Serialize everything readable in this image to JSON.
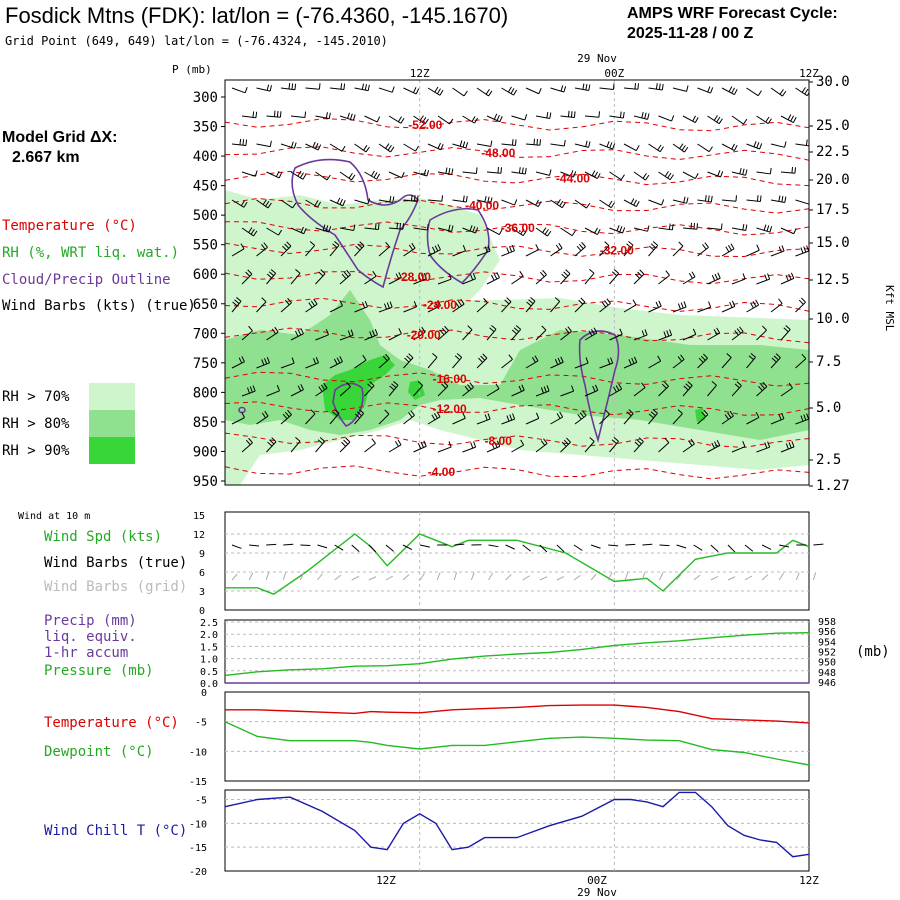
{
  "header": {
    "title": "Fosdick Mtns (FDK):  lat/lon = (-76.4360, -145.1670)",
    "subtitle": "Grid Point (649, 649) lat/lon = (-76.4324, -145.2010)",
    "cycle_line1": "AMPS WRF Forecast Cycle:",
    "cycle_line2": "2025-11-28 / 00  Z",
    "date_label": "29 Nov"
  },
  "legend": {
    "grid_title": "Model Grid ΔX:",
    "grid_value": "2.667 km",
    "temperature": "Temperature (°C)",
    "rh": "RH (%, WRT liq. wat.)",
    "cloud": "Cloud/Precip Outline",
    "wind": "Wind Barbs (kts) (true)",
    "rh70": "RH > 70%",
    "rh80": "RH > 80%",
    "rh90": "RH > 90%"
  },
  "colors": {
    "rh70": "#cef5cc",
    "rh80": "#8fe08f",
    "rh90": "#38d638",
    "temp": "#dd0000",
    "cloud": "#6a3a9a",
    "wind_green": "#22bb22",
    "chill_blue": "#1a1aaa",
    "grid_gray": "#aaaaaa"
  },
  "chart_data": [
    {
      "type": "contour",
      "name": "time-height cross section",
      "y_axis_title": "P (mb)",
      "pressure_levels": [
        300,
        350,
        400,
        450,
        500,
        550,
        600,
        650,
        700,
        750,
        800,
        850,
        900,
        950
      ],
      "height_labels": [
        "30.0",
        "25.0",
        "22.5",
        "20.0",
        "17.5",
        "15.0",
        "12.5",
        "10.0",
        "7.5",
        "5.0",
        "2.5",
        "1.27"
      ],
      "height_axis_title": "Kft MSL",
      "time_ticks": [
        "12Z",
        "00Z",
        "12Z"
      ],
      "forecast_hours": [
        0,
        36
      ],
      "isotherm_labels": [
        {
          "label": "-52.00",
          "hour": 11.3,
          "p": 347
        },
        {
          "label": "-48.00",
          "hour": 15.8,
          "p": 395
        },
        {
          "label": "-44.00",
          "hour": 20.4,
          "p": 438
        },
        {
          "label": "-40.00",
          "hour": 14.8,
          "p": 484
        },
        {
          "label": "-36.00",
          "hour": 17.0,
          "p": 522
        },
        {
          "label": "-32.00",
          "hour": 23.1,
          "p": 560
        },
        {
          "label": "-28.00",
          "hour": 10.6,
          "p": 605
        },
        {
          "label": "-24.00",
          "hour": 12.2,
          "p": 652
        },
        {
          "label": "-20.00",
          "hour": 11.2,
          "p": 703
        },
        {
          "label": "-16.00",
          "hour": 12.8,
          "p": 777
        },
        {
          "label": "-12.00",
          "hour": 12.8,
          "p": 828
        },
        {
          "label": "-8.00",
          "hour": 16.0,
          "p": 882
        },
        {
          "label": "-4.00",
          "hour": 12.5,
          "p": 935
        }
      ]
    },
    {
      "type": "line",
      "name": "wind at 10 m",
      "panel_title": "Wind at 10 m",
      "series_labels": [
        "Wind Spd (kts)",
        "Wind Barbs (true)",
        "Wind Barbs (grid)"
      ],
      "y_ticks": [
        15,
        12,
        9,
        6,
        3,
        0
      ],
      "ylim": [
        0,
        15
      ],
      "x": [
        0,
        2,
        3,
        5,
        8,
        9,
        10,
        12,
        14,
        15,
        18,
        21,
        24,
        26,
        27,
        29,
        31,
        33,
        34,
        35,
        36
      ],
      "wind_speed": [
        3.5,
        3.5,
        2.5,
        6,
        12,
        10,
        7,
        12,
        10,
        11,
        11,
        9,
        4.5,
        5,
        3,
        8,
        9,
        9,
        9,
        11,
        10
      ]
    },
    {
      "type": "line",
      "name": "precip and pressure",
      "series_labels": [
        "Precip (mm)",
        "liq. equiv.",
        "1-hr accum",
        "Pressure (mb)"
      ],
      "left_ticks": [
        "2.5",
        "2.0",
        "1.5",
        "1.0",
        "0.5",
        "0.0"
      ],
      "right_ticks": [
        "958",
        "956",
        "954",
        "952",
        "950",
        "948",
        "946"
      ],
      "right_axis_unit": "(mb)",
      "ylim_precip": [
        0,
        2.5
      ],
      "ylim_pressure": [
        946,
        958
      ],
      "x": [
        0,
        2,
        4,
        6,
        8,
        10,
        12,
        14,
        16,
        18,
        20,
        22,
        24,
        26,
        28,
        30,
        32,
        34,
        36
      ],
      "precip": [
        0,
        0,
        0,
        0,
        0,
        0,
        0,
        0,
        0,
        0,
        0,
        0,
        0,
        0,
        0,
        0,
        0,
        0,
        0
      ],
      "pressure": [
        947.5,
        948.2,
        948.6,
        948.8,
        949.3,
        949.4,
        949.8,
        950.7,
        951.3,
        951.7,
        952.0,
        952.6,
        953.4,
        953.9,
        954.3,
        954.9,
        955.4,
        955.8,
        955.9
      ]
    },
    {
      "type": "line",
      "name": "temperature and dewpoint",
      "series_labels": [
        "Temperature (°C)",
        "Dewpoint (°C)"
      ],
      "y_ticks": [
        0,
        -5,
        -10,
        -15
      ],
      "ylim": [
        -15,
        0
      ],
      "x": [
        0,
        2,
        4,
        6,
        8,
        9,
        10,
        12,
        14,
        16,
        18,
        20,
        22,
        24,
        26,
        28,
        30,
        32,
        34,
        36
      ],
      "temperature": [
        -3.0,
        -3.0,
        -3.2,
        -3.4,
        -3.6,
        -3.3,
        -3.4,
        -3.5,
        -3.0,
        -2.8,
        -2.6,
        -2.3,
        -2.2,
        -2.2,
        -2.6,
        -3.3,
        -4.5,
        -4.7,
        -4.9,
        -5.2
      ],
      "dewpoint": [
        -5.0,
        -7.5,
        -8.2,
        -8.2,
        -8.2,
        -8.5,
        -9.0,
        -9.6,
        -9.0,
        -9.0,
        -8.4,
        -7.8,
        -7.6,
        -7.8,
        -8.1,
        -8.2,
        -9.7,
        -10.2,
        -11.3,
        -12.3
      ]
    },
    {
      "type": "line",
      "name": "wind chill",
      "series_labels": [
        "Wind Chill T (°C)"
      ],
      "y_ticks": [
        -5,
        -10,
        -15,
        -20
      ],
      "ylim": [
        -20,
        -3
      ],
      "x": [
        0,
        2,
        4,
        6,
        8,
        9,
        10,
        11,
        12,
        13,
        14,
        15,
        16,
        18,
        20,
        22,
        24,
        25,
        26,
        27,
        28,
        29,
        30,
        31,
        32,
        33,
        34,
        35,
        36
      ],
      "wind_chill": [
        -6.5,
        -5.0,
        -4.5,
        -7.5,
        -11.5,
        -15.0,
        -15.5,
        -10.0,
        -8.0,
        -10.0,
        -15.5,
        -15.0,
        -13.0,
        -13.0,
        -10.5,
        -8.5,
        -5.0,
        -5.0,
        -5.5,
        -6.5,
        -3.5,
        -3.5,
        -6.5,
        -10.5,
        -12.5,
        -13.5,
        -14.0,
        -17.0,
        -16.5
      ]
    }
  ],
  "bottom_axis": {
    "tick_labels": [
      "12Z",
      "00Z",
      "12Z"
    ],
    "date_label": "29 Nov"
  }
}
